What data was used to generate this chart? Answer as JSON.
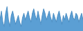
{
  "values": [
    14,
    22,
    12,
    8,
    20,
    26,
    14,
    8,
    18,
    22,
    16,
    10,
    14,
    18,
    12,
    8,
    16,
    20,
    14,
    18,
    22,
    16,
    12,
    20,
    24,
    18,
    14,
    22,
    16,
    10,
    18,
    24,
    20,
    14,
    18,
    22,
    16,
    12,
    20,
    16,
    12,
    18,
    22,
    16,
    10,
    18,
    14,
    20,
    16,
    12,
    18,
    22,
    16,
    14,
    20,
    18,
    12,
    16,
    20,
    14
  ],
  "line_color": "#4d8fc4",
  "fill_color": "#5b9fd4",
  "background_color": "#ffffff",
  "ylim_min": 4,
  "ylim_max": 32
}
